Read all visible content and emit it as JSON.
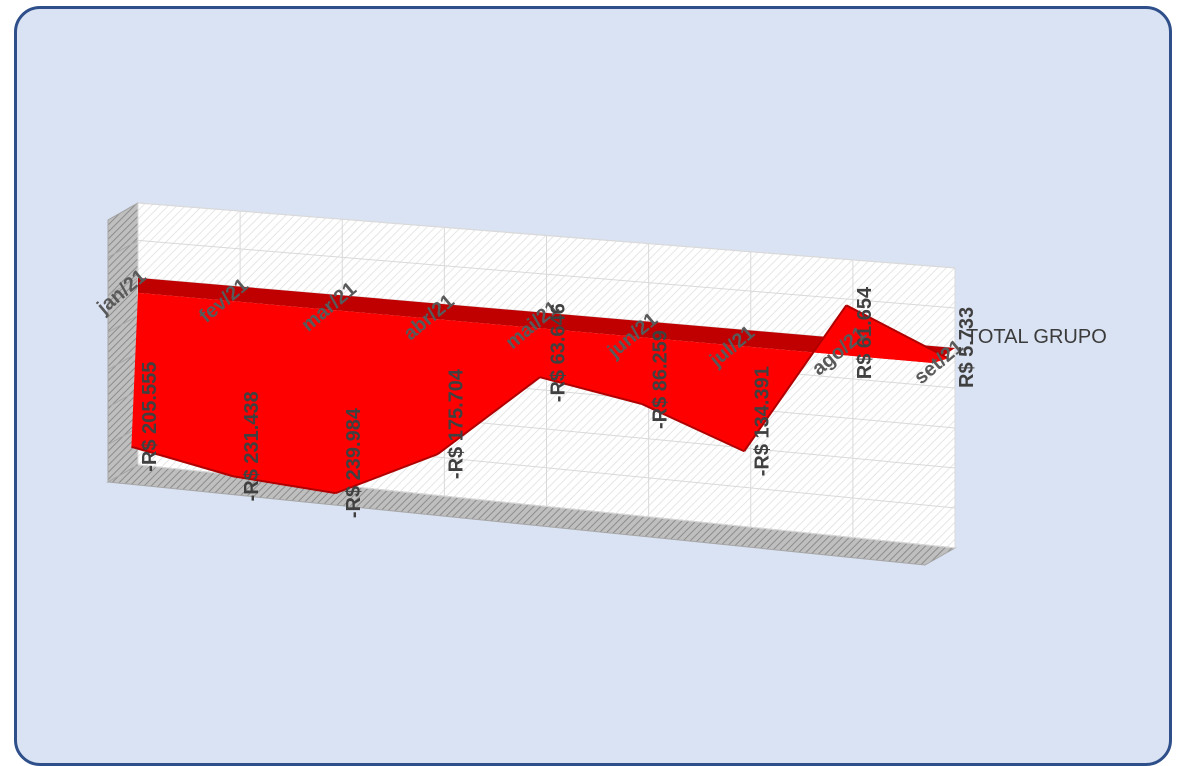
{
  "chart_data": {
    "type": "area",
    "title": "",
    "xlabel": "",
    "ylabel": "",
    "categories": [
      "jan/21",
      "fev/21",
      "mar/21",
      "abr/21",
      "mai/21",
      "jun/21",
      "jul/21",
      "ago/21",
      "set/21"
    ],
    "series": [
      {
        "name": "TOTAL GRUPO",
        "values": [
          -205555,
          -231438,
          -239984,
          -175704,
          -63646,
          -86259,
          -134391,
          61654,
          5733
        ],
        "data_labels": [
          "-R$ 205.555",
          "-R$ 231.438",
          "-R$ 239.984",
          "-R$ 175.704",
          "-R$ 63.646",
          "-R$ 86.259",
          "-R$ 134.391",
          "R$ 61.654",
          "R$ 5.733"
        ]
      }
    ],
    "three_d": true,
    "grid": true,
    "colors": {
      "series": "#ff0000",
      "series_top": "#c00000",
      "background": "#dae3f3",
      "border": "#2e4f8a"
    }
  }
}
